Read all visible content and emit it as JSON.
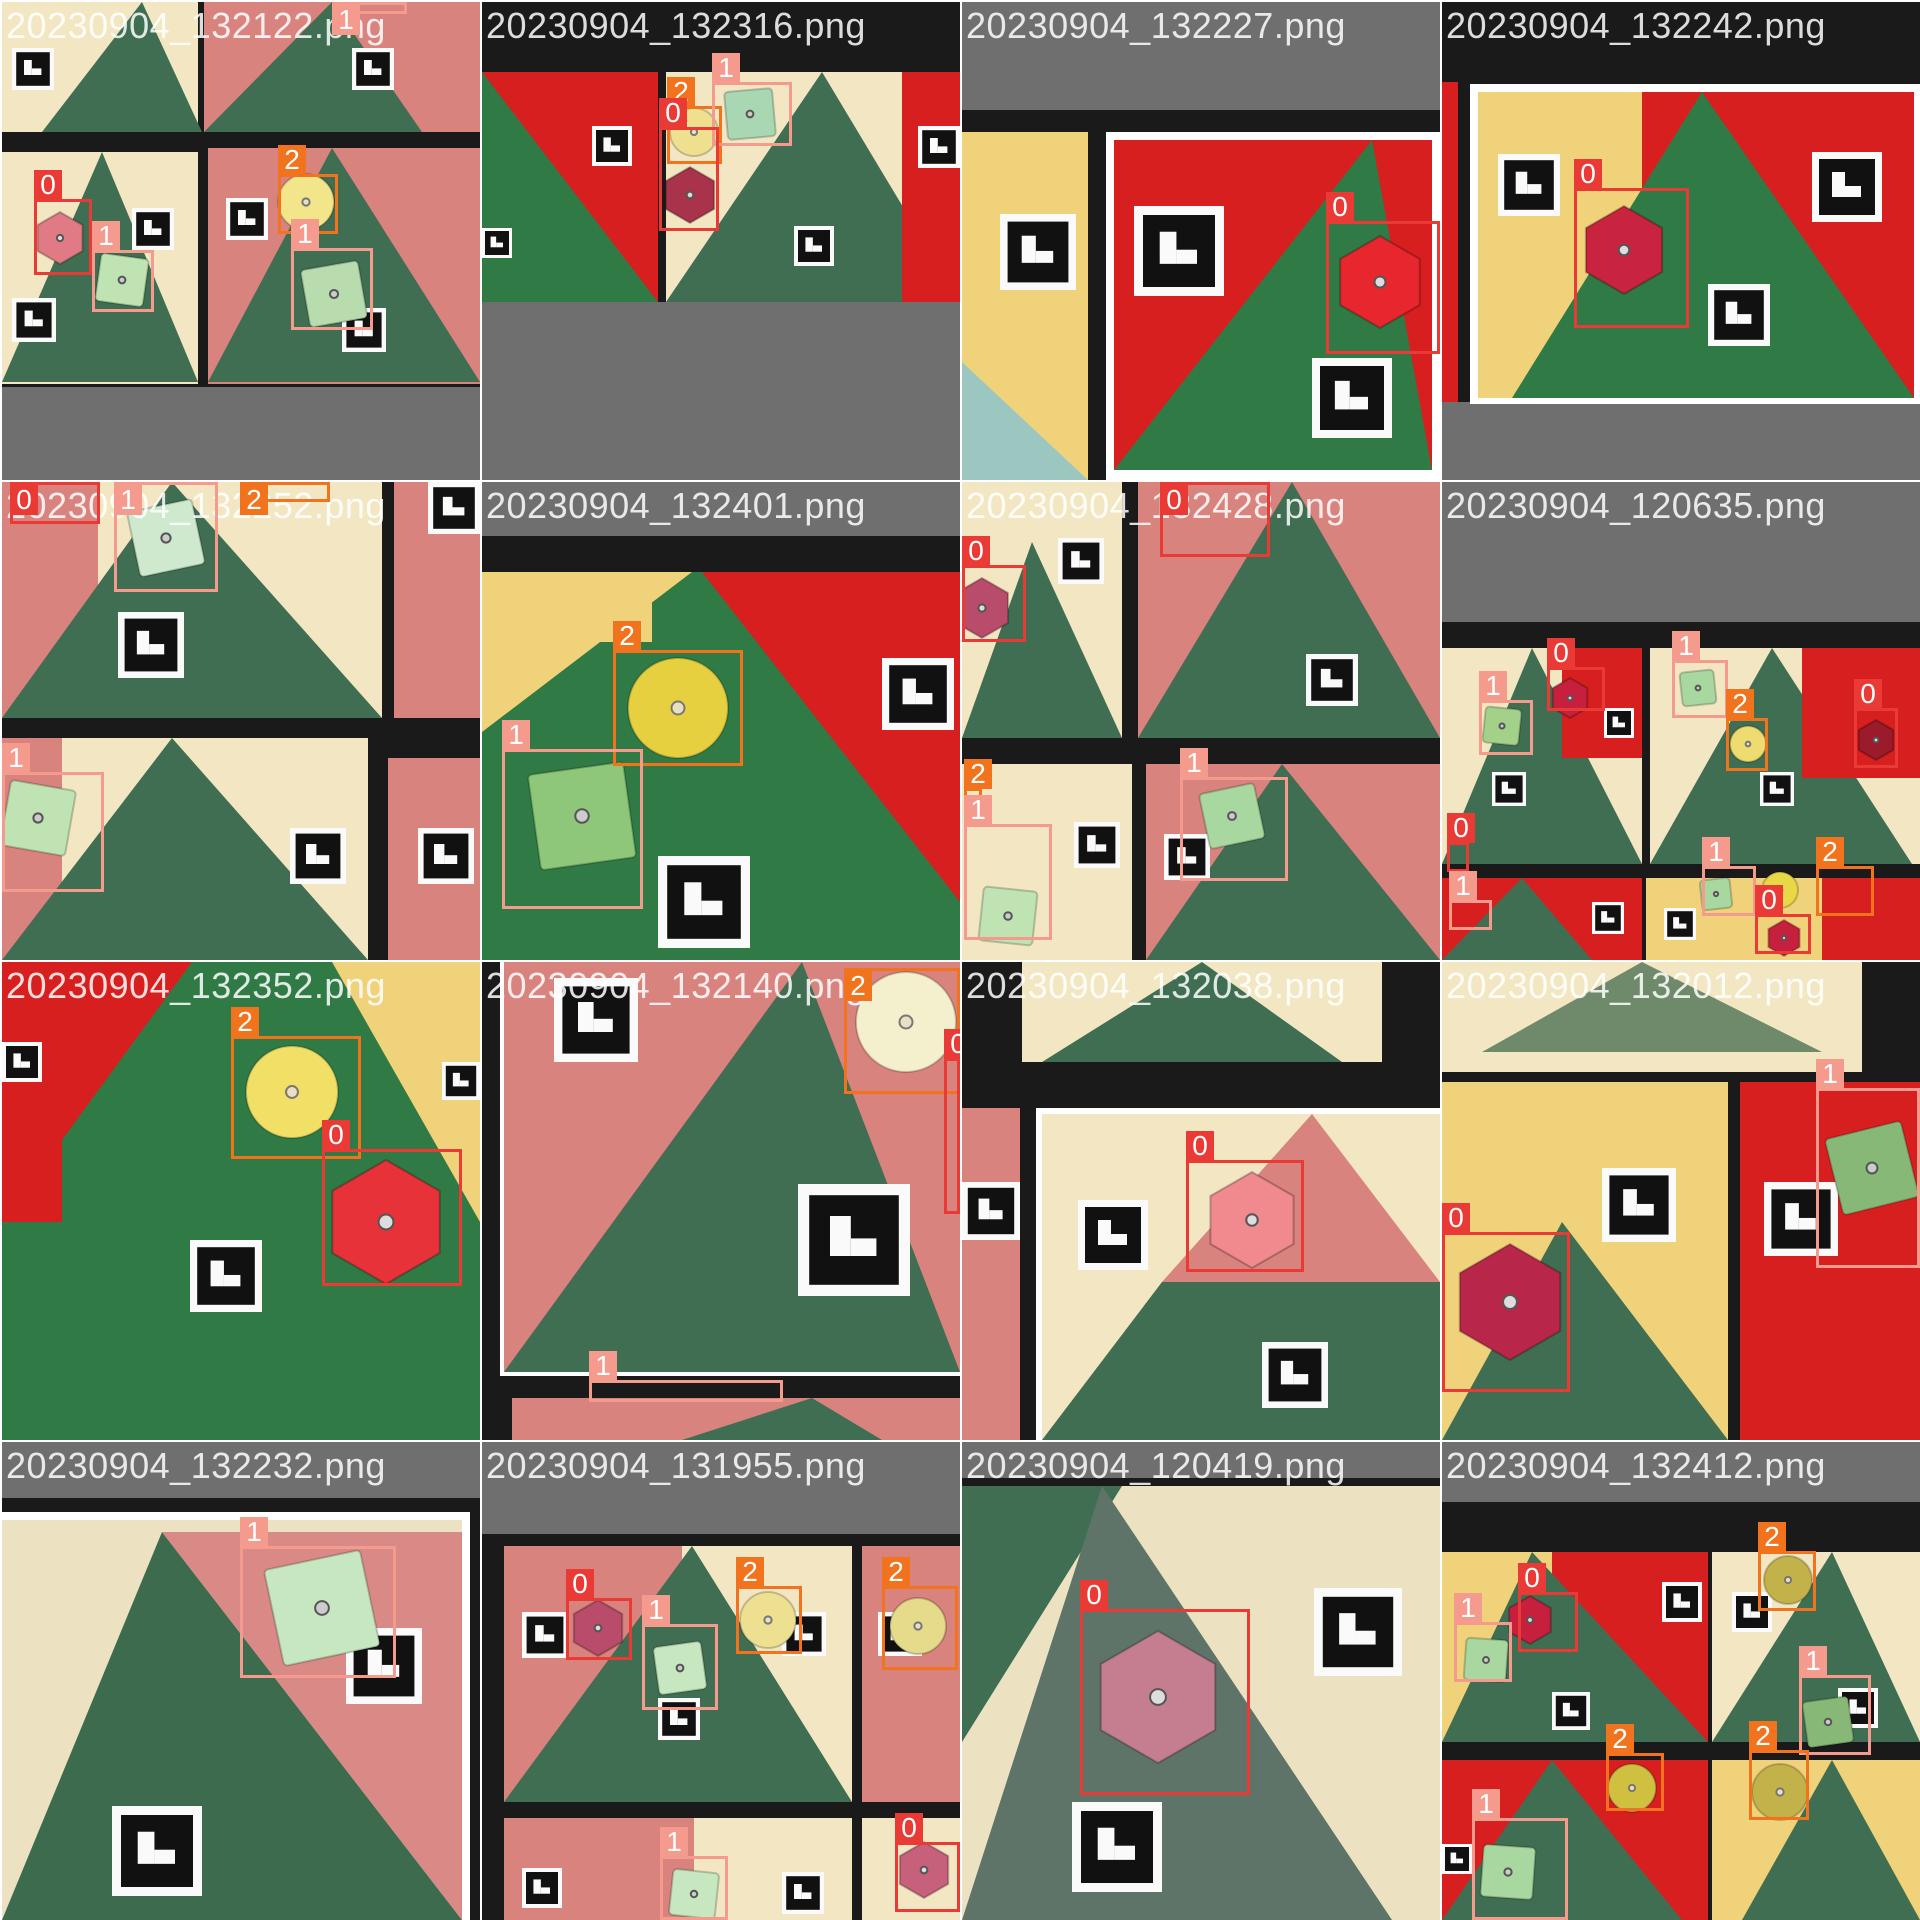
{
  "class_colors": {
    "0": "#ea3a36",
    "1": "#f59b8e",
    "2": "#f2731d"
  },
  "tiles": [
    {
      "filename": "20230904_132122.png",
      "scene": "a",
      "detections": [
        {
          "cls": "0"
        },
        {
          "cls": "1"
        },
        {
          "cls": "2"
        },
        {
          "cls": "1"
        },
        {
          "cls": "1"
        }
      ]
    },
    {
      "filename": "20230904_132316.png",
      "scene": "b",
      "detections": [
        {
          "cls": "2"
        },
        {
          "cls": "1"
        },
        {
          "cls": "0"
        }
      ]
    },
    {
      "filename": "20230904_132227.png",
      "scene": "c",
      "detections": [
        {
          "cls": "0"
        }
      ]
    },
    {
      "filename": "20230904_132242.png",
      "scene": "d",
      "detections": [
        {
          "cls": "0"
        }
      ]
    },
    {
      "filename": "20230904_132252.png",
      "scene": "e",
      "detections": [
        {
          "cls": "0"
        },
        {
          "cls": "1"
        },
        {
          "cls": "2"
        },
        {
          "cls": "1"
        }
      ]
    },
    {
      "filename": "20230904_132401.png",
      "scene": "f",
      "detections": [
        {
          "cls": "2"
        },
        {
          "cls": "1"
        }
      ]
    },
    {
      "filename": "20230904_132428.png",
      "scene": "g",
      "detections": [
        {
          "cls": "0"
        },
        {
          "cls": "0"
        },
        {
          "cls": "1"
        },
        {
          "cls": "2"
        },
        {
          "cls": "1"
        }
      ]
    },
    {
      "filename": "20230904_120635.png",
      "scene": "h",
      "detections": [
        {
          "cls": "0"
        },
        {
          "cls": "1"
        },
        {
          "cls": "1"
        },
        {
          "cls": "2"
        },
        {
          "cls": "0"
        },
        {
          "cls": "0"
        },
        {
          "cls": "1"
        },
        {
          "cls": "2"
        },
        {
          "cls": "1"
        },
        {
          "cls": "0"
        }
      ]
    },
    {
      "filename": "20230904_132352.png",
      "scene": "i",
      "detections": [
        {
          "cls": "2"
        },
        {
          "cls": "0"
        }
      ]
    },
    {
      "filename": "20230904_132140.png",
      "scene": "j",
      "detections": [
        {
          "cls": "2"
        },
        {
          "cls": "0"
        },
        {
          "cls": "1"
        }
      ]
    },
    {
      "filename": "20230904_132038.png",
      "scene": "k",
      "detections": [
        {
          "cls": "0"
        }
      ]
    },
    {
      "filename": "20230904_132012.png",
      "scene": "l",
      "detections": [
        {
          "cls": "1"
        },
        {
          "cls": "0"
        }
      ]
    },
    {
      "filename": "20230904_132232.png",
      "scene": "m",
      "detections": [
        {
          "cls": "1"
        }
      ]
    },
    {
      "filename": "20230904_131955.png",
      "scene": "n",
      "detections": [
        {
          "cls": "0"
        },
        {
          "cls": "1"
        },
        {
          "cls": "2"
        },
        {
          "cls": "2"
        },
        {
          "cls": "0"
        },
        {
          "cls": "1"
        }
      ]
    },
    {
      "filename": "20230904_120419.png",
      "scene": "o",
      "detections": [
        {
          "cls": "0"
        }
      ]
    },
    {
      "filename": "20230904_132412.png",
      "scene": "p",
      "detections": [
        {
          "cls": "2"
        },
        {
          "cls": "0"
        },
        {
          "cls": "1"
        },
        {
          "cls": "1"
        },
        {
          "cls": "2"
        },
        {
          "cls": "2"
        },
        {
          "cls": "1"
        }
      ]
    }
  ]
}
